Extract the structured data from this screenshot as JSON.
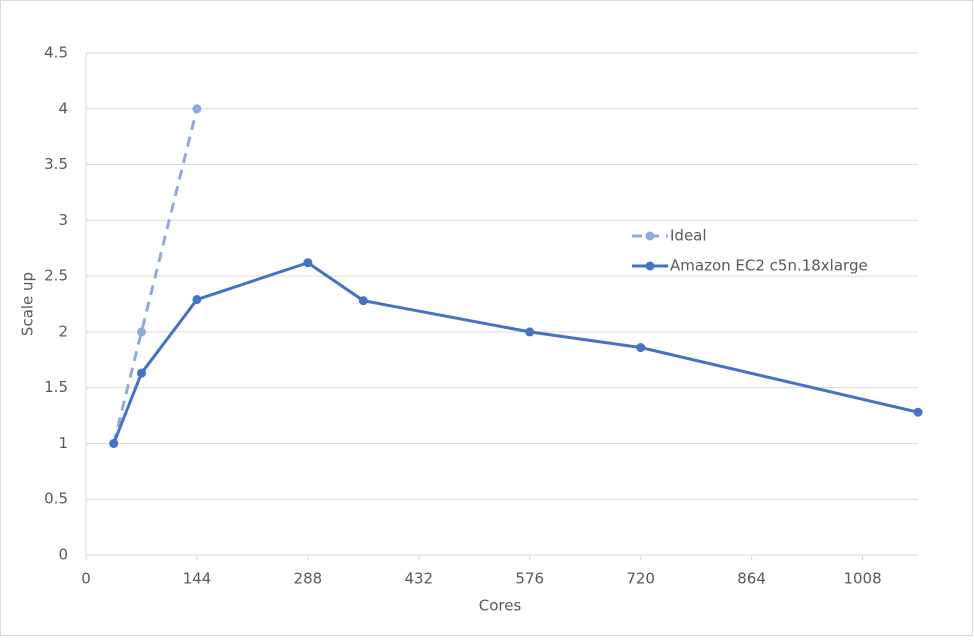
{
  "chart_data": {
    "type": "line",
    "x_label": "Cores",
    "y_label": "Scale up",
    "series": [
      {
        "name": "Ideal",
        "color": "#8faadc",
        "line_style": "dashed",
        "x": [
          36,
          72,
          144
        ],
        "values": [
          1,
          2,
          4
        ]
      },
      {
        "name": "Amazon EC2 c5n.18xlarge",
        "color": "#4472c4",
        "line_style": "solid",
        "x": [
          36,
          72,
          144,
          288,
          360,
          576,
          720,
          1080
        ],
        "values": [
          1,
          1.63,
          2.29,
          2.62,
          2.28,
          2.0,
          1.86,
          1.28
        ]
      }
    ],
    "xlim": [
      0,
      1080
    ],
    "xticks": [
      0,
      144,
      288,
      432,
      576,
      720,
      864,
      1008
    ],
    "ylim": [
      0,
      4.5
    ],
    "yticks": [
      0,
      0.5,
      1,
      1.5,
      2,
      2.5,
      3,
      3.5,
      4,
      4.5
    ],
    "grid": true,
    "legend": "right"
  }
}
